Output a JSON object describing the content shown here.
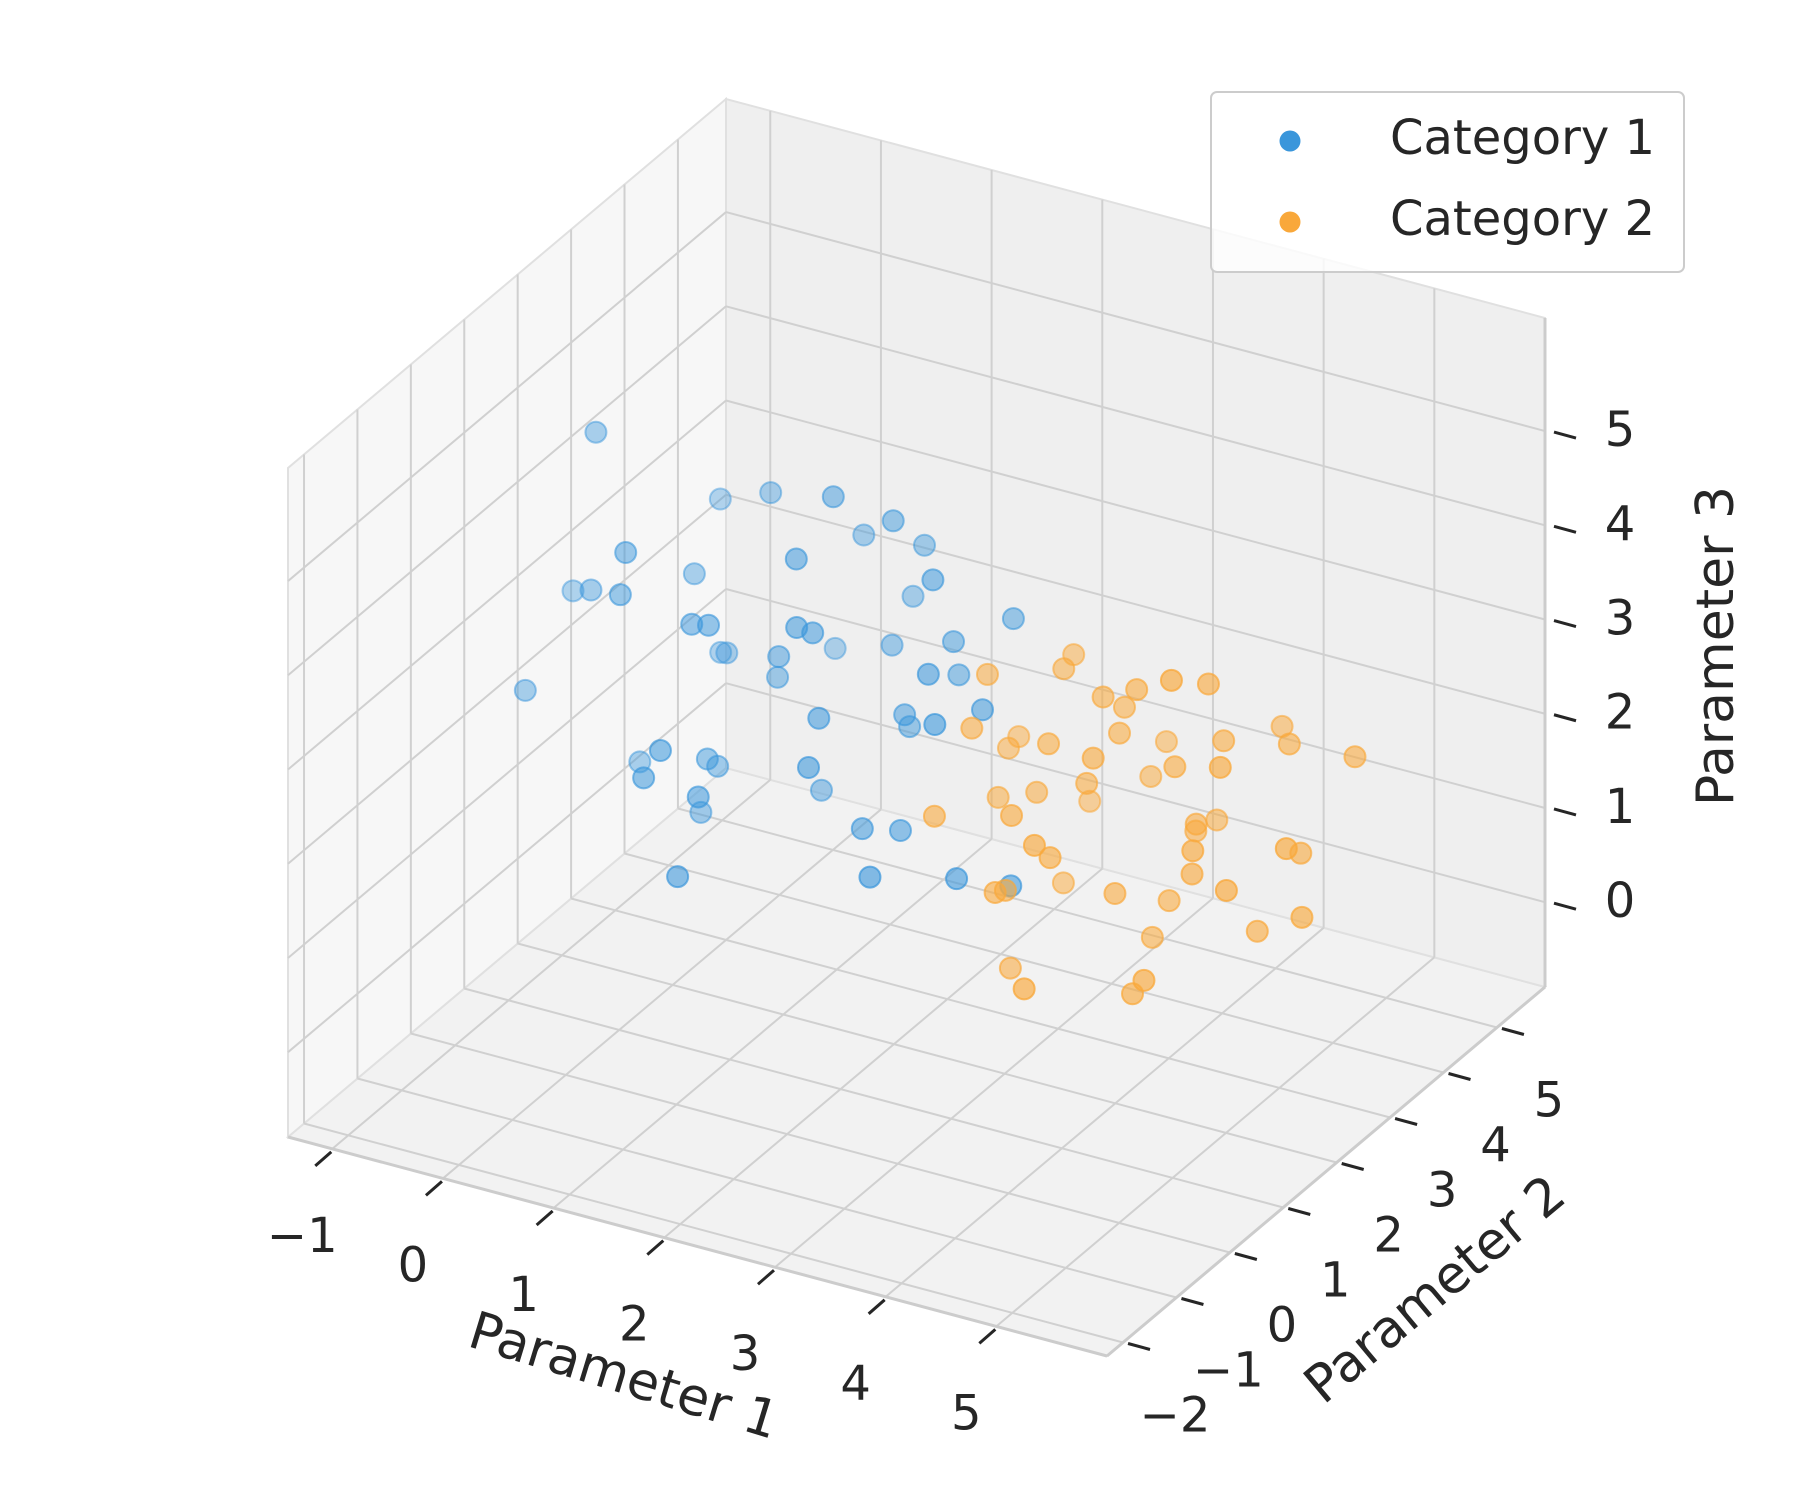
{
  "chart_data": {
    "type": "scatter",
    "x_label": "Parameter 1",
    "y_label": "Parameter 2",
    "z_label": "Parameter 3",
    "xlim": [
      -1.4,
      6.0
    ],
    "ylim": [
      -2.3,
      5.9
    ],
    "zlim": [
      -0.9,
      6.2
    ],
    "xticks": [
      {
        "value": -1,
        "label": "−1"
      },
      0,
      1,
      2,
      3,
      4,
      5
    ],
    "yticks": [
      {
        "value": -2,
        "label": "−2"
      },
      {
        "value": -1,
        "label": "−1"
      },
      0,
      1,
      2,
      3,
      4,
      5
    ],
    "zticks": [
      0,
      1,
      2,
      3,
      4,
      5
    ],
    "grid": true,
    "legend": "upper right",
    "series": [
      {
        "name": "Category 1",
        "color": "#3a96db",
        "x": [
          1.2,
          0.5,
          -0.8,
          2.1,
          1.6,
          0.3,
          2.8,
          1.0,
          -0.2,
          1.9,
          0.8,
          2.4,
          1.5,
          0.1,
          3.0,
          1.1,
          -0.5,
          2.2,
          0.6,
          1.7,
          2.6,
          0.9,
          1.3,
          -0.1,
          2.0,
          0.4,
          1.8,
          2.9,
          0.7,
          1.4,
          -0.9,
          2.3,
          1.0,
          0.2,
          1.6,
          2.5,
          0.8,
          1.2,
          -0.4,
          2.7,
          1.5,
          0.0,
          1.9,
          0.6,
          2.2,
          1.1,
          3.2,
          0.3,
          1.7,
          2.0
        ],
        "y": [
          1.5,
          2.8,
          0.9,
          1.2,
          3.4,
          0.5,
          2.0,
          -0.3,
          1.8,
          2.5,
          0.7,
          1.9,
          3.0,
          2.2,
          1.1,
          0.2,
          1.6,
          2.7,
          3.8,
          0.8,
          1.4,
          2.1,
          -0.6,
          3.1,
          0.4,
          1.7,
          2.4,
          0.9,
          1.2,
          3.6,
          2.0,
          1.5,
          0.6,
          2.6,
          1.0,
          3.2,
          -0.2,
          2.3,
          1.3,
          0.1,
          1.9,
          2.9,
          0.8,
          1.6,
          2.8,
          3.3,
          1.7,
          0.4,
          1.1,
          2.2
        ],
        "z": [
          3.2,
          4.1,
          2.5,
          1.8,
          3.6,
          4.5,
          2.9,
          3.0,
          1.5,
          2.2,
          3.8,
          4.2,
          2.7,
          3.4,
          1.6,
          2.3,
          5.0,
          3.1,
          2.0,
          4.0,
          3.5,
          2.6,
          1.9,
          3.7,
          2.8,
          1.2,
          4.4,
          3.3,
          2.1,
          2.9,
          3.0,
          1.7,
          3.9,
          2.4,
          4.6,
          3.2,
          2.6,
          1.4,
          3.5,
          2.0,
          4.8,
          2.2,
          3.1,
          1.8,
          2.7,
          3.6,
          1.3,
          4.1,
          3.8,
          2.5
        ]
      },
      {
        "name": "Category 2",
        "color": "#f9a83a",
        "x": [
          3.5,
          4.2,
          2.8,
          3.9,
          4.8,
          3.1,
          2.5,
          4.5,
          3.7,
          5.2,
          3.3,
          4.0,
          2.9,
          4.7,
          3.6,
          4.3,
          3.0,
          5.0,
          3.8,
          2.7,
          4.1,
          3.4,
          4.9,
          3.2,
          4.4,
          2.6,
          3.9,
          4.6,
          3.5,
          5.4,
          3.1,
          4.2,
          2.9,
          3.7,
          4.8,
          3.3,
          4.0,
          5.1,
          3.6,
          2.8,
          4.5,
          3.0,
          4.3,
          3.8,
          5.3,
          3.4,
          4.1,
          2.7,
          4.7,
          3.9
        ],
        "y": [
          2.5,
          3.1,
          1.8,
          2.2,
          3.6,
          2.9,
          3.3,
          1.5,
          2.7,
          4.0,
          1.2,
          2.4,
          3.8,
          2.0,
          3.0,
          1.7,
          2.6,
          3.4,
          0.9,
          2.3,
          2.8,
          4.2,
          2.1,
          1.6,
          3.2,
          2.9,
          0.5,
          2.5,
          3.7,
          2.3,
          1.9,
          2.7,
          3.5,
          1.4,
          3.0,
          2.2,
          3.9,
          1.8,
          2.6,
          1.1,
          2.4,
          3.1,
          4.5,
          2.0,
          2.8,
          1.3,
          3.3,
          2.5,
          1.6,
          2.9
        ],
        "z": [
          2.1,
          1.6,
          2.8,
          1.2,
          2.4,
          3.0,
          1.9,
          0.8,
          2.6,
          2.2,
          1.5,
          3.3,
          1.1,
          2.0,
          2.7,
          0.5,
          1.8,
          1.4,
          2.3,
          3.1,
          0.9,
          1.7,
          2.9,
          1.3,
          2.5,
          2.0,
          1.0,
          3.5,
          1.6,
          2.1,
          0.3,
          2.4,
          2.8,
          1.9,
          0.7,
          2.6,
          1.2,
          1.8,
          3.0,
          2.2,
          1.5,
          0.6,
          2.0,
          2.7,
          1.1,
          2.3,
          1.4,
          1.7,
          4.0,
          0.4
        ]
      }
    ]
  }
}
